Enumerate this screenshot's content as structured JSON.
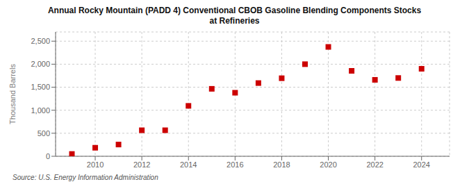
{
  "chart_data": {
    "type": "scatter",
    "title": "Annual Rocky Mountain (PADD 4) Conventional CBOB Gasoline Blending Components Stocks\nat Refineries",
    "ylabel": "Thousand Barrels",
    "annotations": [
      "Source: U.S. Energy Information Administration"
    ],
    "x": [
      2009,
      2010,
      2011,
      2012,
      2013,
      2014,
      2015,
      2016,
      2017,
      2018,
      2019,
      2020,
      2021,
      2022,
      2023,
      2024
    ],
    "values": [
      50,
      185,
      255,
      565,
      565,
      1095,
      1465,
      1380,
      1590,
      1695,
      2000,
      2375,
      1855,
      1660,
      1700,
      1900
    ],
    "color": "#cc0000",
    "marker": "square",
    "xlim": [
      2008.3,
      2025.2
    ],
    "xticks": [
      2010,
      2012,
      2014,
      2016,
      2018,
      2020,
      2022,
      2024
    ],
    "ylim": [
      0,
      2700
    ],
    "yticks": [
      0,
      500,
      {
        "value": 1000,
        "label": "1,000"
      },
      {
        "value": 1500,
        "label": "1,500"
      },
      {
        "value": 2000,
        "label": "2,000"
      },
      {
        "value": 2500,
        "label": "2,500"
      }
    ],
    "grid": true
  }
}
